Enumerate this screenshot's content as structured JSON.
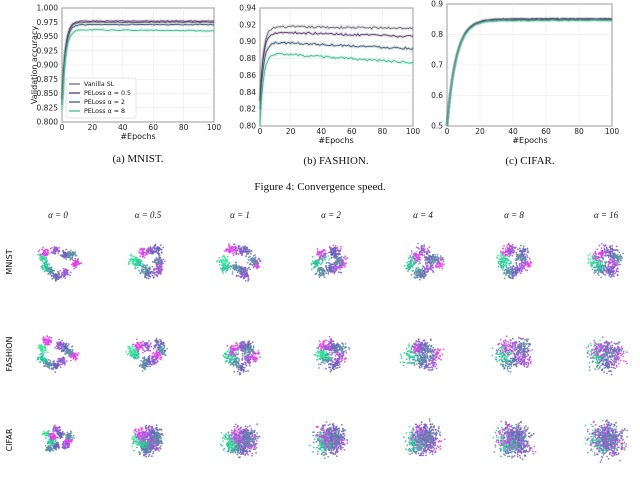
{
  "chart_data": [
    {
      "type": "line",
      "id": "mnist",
      "caption": "(a) MNIST.",
      "xlabel": "#Epochs",
      "ylabel": "Validation accuracy",
      "xlim": [
        0,
        100
      ],
      "ylim": [
        0.8,
        1.0
      ],
      "xticks": [
        "0",
        "20",
        "40",
        "60",
        "80",
        "100"
      ],
      "yticks": [
        "0.800",
        "0.825",
        "0.850",
        "0.875",
        "0.900",
        "0.925",
        "0.950",
        "0.975",
        "1.000"
      ],
      "ytick_values": [
        0.8,
        0.825,
        0.85,
        0.875,
        0.9,
        0.925,
        0.95,
        0.975,
        1.0
      ],
      "legend": {
        "position": "lower-left"
      },
      "series": [
        {
          "name": "Vanilla SL",
          "color": "#6d6d76",
          "start": 0.84,
          "plateau": 0.975,
          "drift": 0.0
        },
        {
          "name": "PELoss α = 0.5",
          "color": "#5b3b70",
          "start": 0.84,
          "plateau": 0.977,
          "drift": 0.0
        },
        {
          "name": "PELoss α = 2",
          "color": "#3e5f73",
          "start": 0.83,
          "plateau": 0.971,
          "drift": 0.0
        },
        {
          "name": "PELoss α = 8",
          "color": "#3fbf8f",
          "start": 0.82,
          "plateau": 0.962,
          "drift": -0.002
        }
      ]
    },
    {
      "type": "line",
      "id": "fashion",
      "caption": "(b) FASHION.",
      "xlabel": "#Epochs",
      "ylabel": "",
      "xlim": [
        0,
        100
      ],
      "ylim": [
        0.8,
        0.94
      ],
      "xticks": [
        "0",
        "20",
        "40",
        "60",
        "80",
        "100"
      ],
      "yticks": [
        "0.80",
        "0.82",
        "0.84",
        "0.86",
        "0.88",
        "0.90",
        "0.92",
        "0.94"
      ],
      "ytick_values": [
        0.8,
        0.82,
        0.84,
        0.86,
        0.88,
        0.9,
        0.92,
        0.94
      ],
      "series": [
        {
          "name": "Vanilla SL",
          "color": "#6d6d76",
          "start": 0.83,
          "plateau": 0.918,
          "drift": -0.002
        },
        {
          "name": "PELoss α = 0.5",
          "color": "#5b3b70",
          "start": 0.83,
          "plateau": 0.912,
          "drift": -0.006
        },
        {
          "name": "PELoss α = 2",
          "color": "#3e5f73",
          "start": 0.82,
          "plateau": 0.9,
          "drift": -0.008
        },
        {
          "name": "PELoss α = 8",
          "color": "#3fbf8f",
          "start": 0.8,
          "plateau": 0.887,
          "drift": -0.012
        }
      ]
    },
    {
      "type": "line",
      "id": "cifar",
      "caption": "(c) CIFAR.",
      "xlabel": "#Epochs",
      "ylabel": "",
      "xlim": [
        0,
        100
      ],
      "ylim": [
        0.5,
        0.9
      ],
      "xticks": [
        "0",
        "20",
        "40",
        "60",
        "80",
        "100"
      ],
      "yticks": [
        "0.5",
        "0.6",
        "0.7",
        "0.8",
        "0.9"
      ],
      "ytick_values": [
        0.5,
        0.6,
        0.7,
        0.8,
        0.9
      ],
      "series": [
        {
          "name": "Vanilla SL",
          "color": "#6d6d76",
          "start": 0.5,
          "plateau": 0.852,
          "drift": 0.0
        },
        {
          "name": "PELoss α = 0.5",
          "color": "#5b3b70",
          "start": 0.5,
          "plateau": 0.85,
          "drift": 0.0
        },
        {
          "name": "PELoss α = 2",
          "color": "#3e5f73",
          "start": 0.5,
          "plateau": 0.848,
          "drift": 0.0
        },
        {
          "name": "PELoss α = 8",
          "color": "#3fbf8f",
          "start": 0.5,
          "plateau": 0.846,
          "drift": 0.0
        }
      ]
    }
  ],
  "figure_caption": "Figure 4: Convergence speed.",
  "tsne": {
    "alphas": [
      "α = 0",
      "α = 0.5",
      "α = 1",
      "α = 2",
      "α = 4",
      "α = 8",
      "α = 16"
    ],
    "alpha_values": [
      0,
      0.5,
      1,
      2,
      4,
      8,
      16
    ],
    "rows": [
      "MNIST",
      "FASHION",
      "CIFAR"
    ],
    "class_colors": [
      "#e83cf0",
      "#9b59d6",
      "#6a63b8",
      "#5b8fa6",
      "#27c79a",
      "#3de39a"
    ]
  }
}
